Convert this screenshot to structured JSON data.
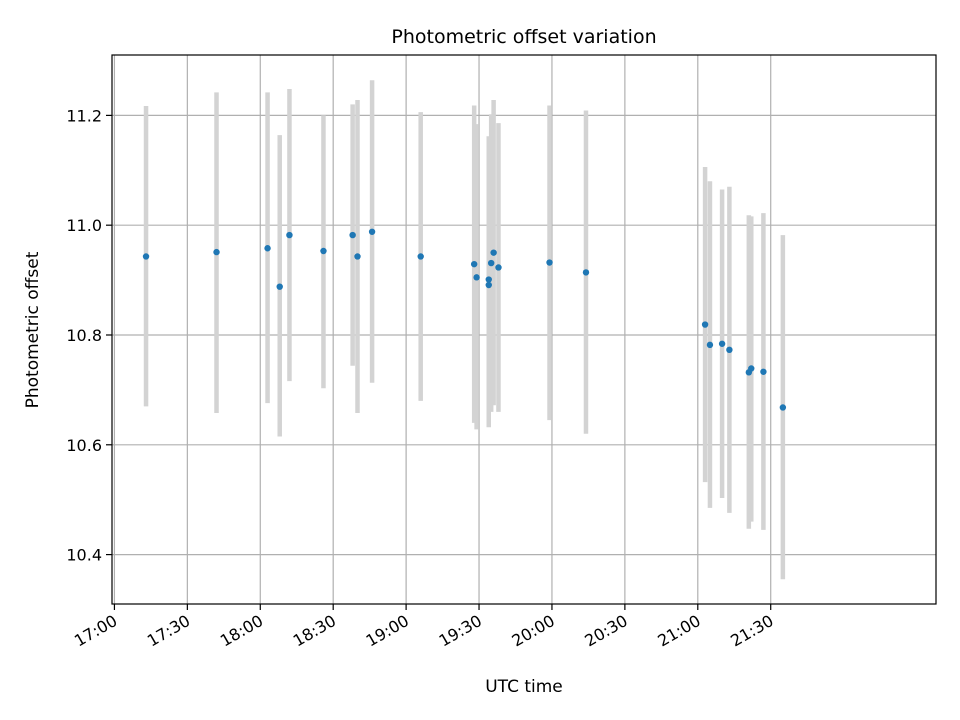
{
  "chart_data": {
    "type": "scatter",
    "title": "Photometric offset variation",
    "xlabel": "UTC time",
    "ylabel": "Photometric offset",
    "grid": true,
    "legend": "none",
    "xlim": [
      "16:59",
      "22:38"
    ],
    "ylim": [
      10.31,
      11.31
    ],
    "x_ticks": [
      "17:00",
      "17:30",
      "18:00",
      "18:30",
      "19:00",
      "19:30",
      "20:00",
      "20:30",
      "21:00",
      "21:30"
    ],
    "y_ticks": [
      "10.4",
      "10.6",
      "10.8",
      "11.0",
      "11.2"
    ],
    "colors": {
      "points": "#1f77b4",
      "error_bars": "#d3d3d3",
      "grid": "#b0b0b0"
    },
    "series": [
      {
        "error_bars": true,
        "points": [
          {
            "x": "17:13",
            "y": 10.943,
            "lo": 10.67,
            "hi": 11.217
          },
          {
            "x": "17:42",
            "y": 10.951,
            "lo": 10.658,
            "hi": 11.242
          },
          {
            "x": "18:03",
            "y": 10.958,
            "lo": 10.676,
            "hi": 11.242
          },
          {
            "x": "18:08",
            "y": 10.888,
            "lo": 10.615,
            "hi": 11.164
          },
          {
            "x": "18:12",
            "y": 10.982,
            "lo": 10.716,
            "hi": 11.248
          },
          {
            "x": "18:26",
            "y": 10.953,
            "lo": 10.703,
            "hi": 11.2
          },
          {
            "x": "18:38",
            "y": 10.982,
            "lo": 10.744,
            "hi": 11.22
          },
          {
            "x": "18:40",
            "y": 10.943,
            "lo": 10.658,
            "hi": 11.228
          },
          {
            "x": "18:46",
            "y": 10.988,
            "lo": 10.713,
            "hi": 11.264
          },
          {
            "x": "19:06",
            "y": 10.943,
            "lo": 10.68,
            "hi": 11.206
          },
          {
            "x": "19:28",
            "y": 10.929,
            "lo": 10.64,
            "hi": 11.218
          },
          {
            "x": "19:29",
            "y": 10.905,
            "lo": 10.628,
            "hi": 11.184
          },
          {
            "x": "19:34",
            "y": 10.891,
            "lo": 10.632,
            "hi": 11.15
          },
          {
            "x": "19:34",
            "y": 10.901,
            "lo": 10.64,
            "hi": 11.162
          },
          {
            "x": "19:35",
            "y": 10.931,
            "lo": 10.66,
            "hi": 11.202
          },
          {
            "x": "19:36",
            "y": 10.95,
            "lo": 10.672,
            "hi": 11.228
          },
          {
            "x": "19:38",
            "y": 10.923,
            "lo": 10.66,
            "hi": 11.186
          },
          {
            "x": "19:59",
            "y": 10.932,
            "lo": 10.645,
            "hi": 11.218
          },
          {
            "x": "20:14",
            "y": 10.914,
            "lo": 10.62,
            "hi": 11.209
          },
          {
            "x": "21:03",
            "y": 10.819,
            "lo": 10.532,
            "hi": 11.106
          },
          {
            "x": "21:05",
            "y": 10.782,
            "lo": 10.485,
            "hi": 11.08
          },
          {
            "x": "21:10",
            "y": 10.784,
            "lo": 10.503,
            "hi": 11.065
          },
          {
            "x": "21:13",
            "y": 10.773,
            "lo": 10.476,
            "hi": 11.07
          },
          {
            "x": "21:21",
            "y": 10.732,
            "lo": 10.447,
            "hi": 11.018
          },
          {
            "x": "21:22",
            "y": 10.739,
            "lo": 10.46,
            "hi": 11.016
          },
          {
            "x": "21:27",
            "y": 10.733,
            "lo": 10.445,
            "hi": 11.022
          },
          {
            "x": "21:35",
            "y": 10.668,
            "lo": 10.355,
            "hi": 10.982
          }
        ]
      }
    ]
  }
}
